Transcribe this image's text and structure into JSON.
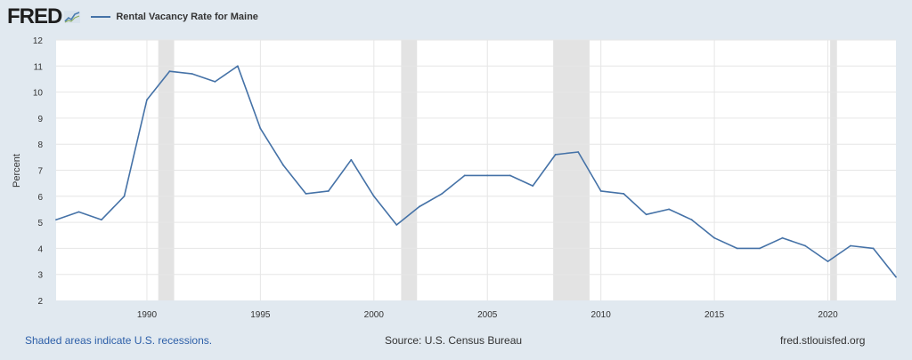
{
  "header": {
    "logo_text": "FRED",
    "legend_label": "Rental Vacancy Rate for Maine",
    "legend_color": "#4572a7"
  },
  "footer": {
    "recession_note": "Shaded areas indicate U.S. recessions.",
    "source": "Source: U.S. Census Bureau",
    "site": "fred.stlouisfed.org"
  },
  "chart_data": {
    "type": "line",
    "title": "",
    "xlabel": "",
    "ylabel": "Percent",
    "ylim": [
      2,
      12
    ],
    "xlim": [
      1986,
      2023
    ],
    "y_ticks": [
      2,
      3,
      4,
      5,
      6,
      7,
      8,
      9,
      10,
      11,
      12
    ],
    "x_ticks": [
      1990,
      1995,
      2000,
      2005,
      2010,
      2015,
      2020
    ],
    "grid": true,
    "recessions": [
      [
        1990.5,
        1991.2
      ],
      [
        2001.2,
        2001.9
      ],
      [
        2007.9,
        2009.5
      ],
      [
        2020.1,
        2020.4
      ]
    ],
    "series": [
      {
        "name": "Rental Vacancy Rate for Maine",
        "color": "#4572a7",
        "x": [
          1986,
          1987,
          1988,
          1989,
          1990,
          1991,
          1992,
          1993,
          1994,
          1995,
          1996,
          1997,
          1998,
          1999,
          2000,
          2001,
          2002,
          2003,
          2004,
          2005,
          2006,
          2007,
          2008,
          2009,
          2010,
          2011,
          2012,
          2013,
          2014,
          2015,
          2016,
          2017,
          2018,
          2019,
          2020,
          2021,
          2022,
          2023
        ],
        "values": [
          5.1,
          5.4,
          5.1,
          6.0,
          9.7,
          10.8,
          10.7,
          10.4,
          11.0,
          8.6,
          7.2,
          6.1,
          6.2,
          7.4,
          6.0,
          4.9,
          5.6,
          6.1,
          6.8,
          6.8,
          6.8,
          6.4,
          7.6,
          7.7,
          6.2,
          6.1,
          5.3,
          5.5,
          5.1,
          4.4,
          4.0,
          4.0,
          4.4,
          4.1,
          3.5,
          4.1,
          4.0,
          2.9
        ]
      }
    ]
  }
}
